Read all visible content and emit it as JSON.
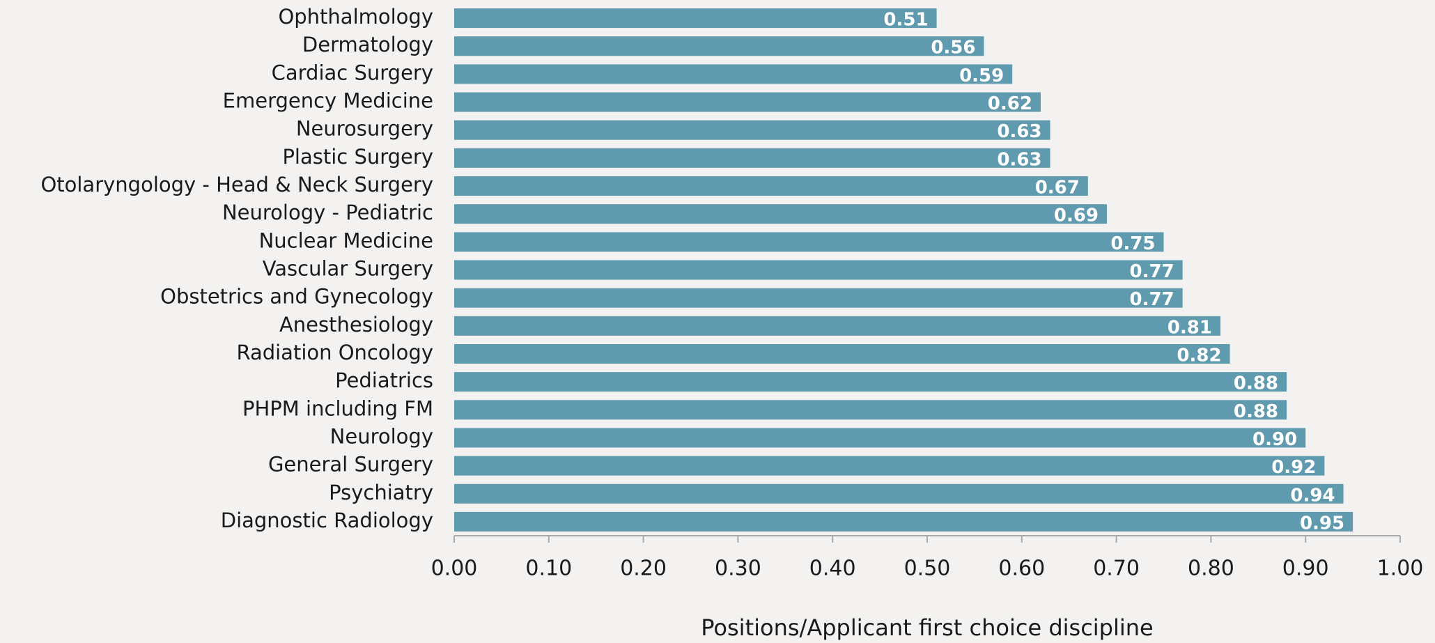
{
  "chart_data": {
    "type": "bar",
    "orientation": "horizontal",
    "x_label": "Positions/Applicant first choice discipline",
    "categories": [
      "Ophthalmology",
      "Dermatology",
      "Cardiac Surgery",
      "Emergency Medicine",
      "Neurosurgery",
      "Plastic Surgery",
      "Otolaryngology - Head & Neck Surgery",
      "Neurology - Pediatric",
      "Nuclear Medicine",
      "Vascular Surgery",
      "Obstetrics and Gynecology",
      "Anesthesiology",
      "Radiation Oncology",
      "Pediatrics",
      "PHPM including FM",
      "Neurology",
      "General Surgery",
      "Psychiatry",
      "Diagnostic Radiology"
    ],
    "values": [
      0.51,
      0.56,
      0.59,
      0.62,
      0.63,
      0.63,
      0.67,
      0.69,
      0.75,
      0.77,
      0.77,
      0.81,
      0.82,
      0.88,
      0.88,
      0.9,
      0.92,
      0.94,
      0.95
    ],
    "value_labels": [
      "0.51",
      "0.56",
      "0.59",
      "0.62",
      "0.63",
      "0.63",
      "0.67",
      "0.69",
      "0.75",
      "0.77",
      "0.77",
      "0.81",
      "0.82",
      "0.88",
      "0.88",
      "0.90",
      "0.92",
      "0.94",
      "0.95"
    ],
    "color": "#5f9aae",
    "xlim": [
      0,
      1
    ],
    "xticks": [
      {
        "value": 0,
        "label": "0.00"
      },
      {
        "value": 0.1,
        "label": "0.10"
      },
      {
        "value": 0.2,
        "label": "0.20"
      },
      {
        "value": 0.3,
        "label": "0.30"
      },
      {
        "value": 0.4,
        "label": "0.40"
      },
      {
        "value": 0.5,
        "label": "0.50"
      },
      {
        "value": 0.6,
        "label": "0.60"
      },
      {
        "value": 0.7,
        "label": "0.70"
      },
      {
        "value": 0.8,
        "label": "0.80"
      },
      {
        "value": 0.9,
        "label": "0.90"
      },
      {
        "value": 1,
        "label": "1.00"
      }
    ],
    "grid": false
  }
}
